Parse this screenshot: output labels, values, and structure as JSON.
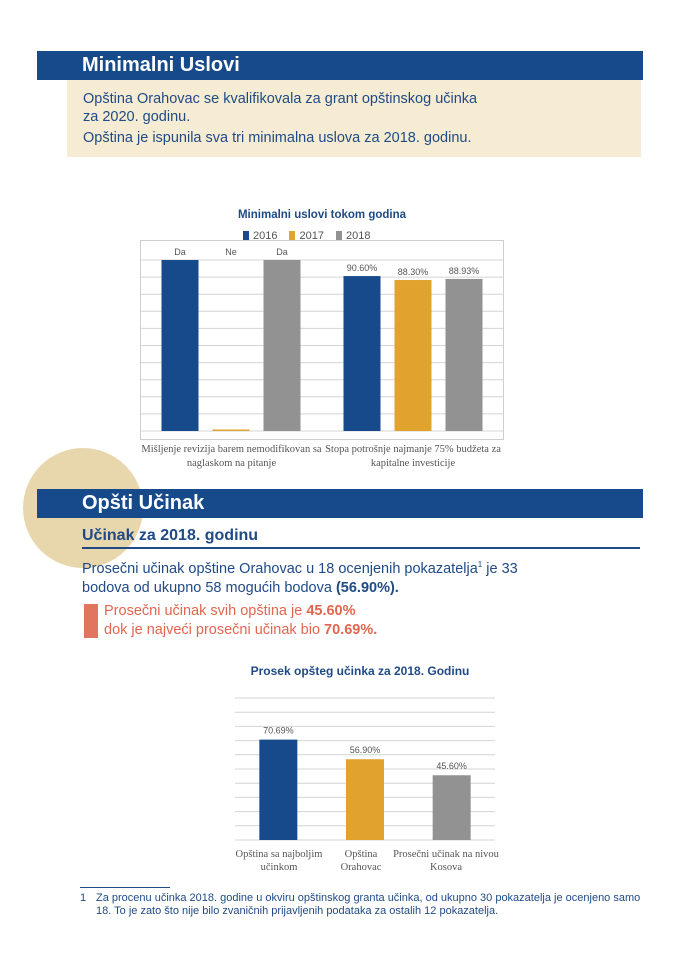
{
  "section1": {
    "title": "Minimalni Uslovi",
    "line1": "Opština Orahovac se kvalifikovala za grant opštinskog učinka",
    "line2": "za 2020. godinu.",
    "line3": "Opština je ispunila sva tri minimalna uslova za 2018. godinu."
  },
  "chart_data": [
    {
      "type": "bar",
      "title": "Minimalni uslovi tokom godina",
      "categories": [
        "Mišljenje revizija barem nemodifikovan sa naglaskom na pitanje",
        "Stopa potrošnje najmanje 75% budžeta za kapitalne investicije"
      ],
      "series": [
        {
          "name": "2016",
          "values": [
            100,
            90.6
          ],
          "labels": [
            "Da",
            "90.60%"
          ]
        },
        {
          "name": "2017",
          "values": [
            0,
            88.3
          ],
          "labels": [
            "Ne",
            "88.30%"
          ]
        },
        {
          "name": "2018",
          "values": [
            100,
            88.93
          ],
          "labels": [
            "Da",
            "88.93%"
          ]
        }
      ],
      "ylim": [
        0,
        100
      ],
      "grid": true,
      "legend": "top"
    },
    {
      "type": "bar",
      "title": "Prosek opšteg učinka za 2018. Godinu",
      "categories": [
        "Opština sa najboljim učinkom",
        "Opština Orahovac",
        "Prosečni učinak na nivou Kosova"
      ],
      "values": [
        70.69,
        56.9,
        45.6
      ],
      "labels": [
        "70.69%",
        "56.90%",
        "45.60%"
      ],
      "ylim": [
        0,
        100
      ],
      "grid": true
    }
  ],
  "chart1": {
    "cat1_line1": "Mišljenje revizija barem nemodifikovan sa",
    "cat1_line2": "naglaskom na pitanje",
    "cat2_line1": "Stopa potrošnje najmanje 75% budžeta za",
    "cat2_line2": "kapitalne investicije"
  },
  "chart2": {
    "cat1_line1": "Opština sa najboljim",
    "cat1_line2": "učinkom",
    "cat2_line1": "Opština",
    "cat2_line2": "Orahovac",
    "cat3_line1": "Prosečni učinak na nivou",
    "cat3_line2": "Kosova"
  },
  "section2": {
    "title": "Opšti Učinak",
    "subtitle": "Učinak za 2018. godinu",
    "body_line1_pre": "Prosečni učinak opštine Orahovac u 18 ocenjenih pokazatelja",
    "body_sup": "1",
    "body_line1_post": " je 33",
    "body_line2_pre": "bodova od ukupno 58 mogućih bodova ",
    "body_line2_bold": "(56.90%).",
    "red_line1_pre": "Prosečni učinak svih opština je ",
    "red_line1_bold": "45.60%",
    "red_line2_pre": "dok je najveći prosečni učinak bio ",
    "red_line2_bold": "70.69%."
  },
  "footnote": {
    "number": "1",
    "text": "Za procenu učinka 2018. godine u okviru opštinskog granta učinka, od ukupno 30 pokazatelja je ocenjeno samo 18. To je zato što nije bilo zvaničnih prijavljenih podataka za ostalih 12 pokazatelja."
  },
  "colors": {
    "banner": "#174a8b",
    "y2016": "#174a8b",
    "y2017": "#e0a42e",
    "y2018": "#929292",
    "accent_red": "#e07560",
    "box_bg": "#f6ecd3"
  }
}
